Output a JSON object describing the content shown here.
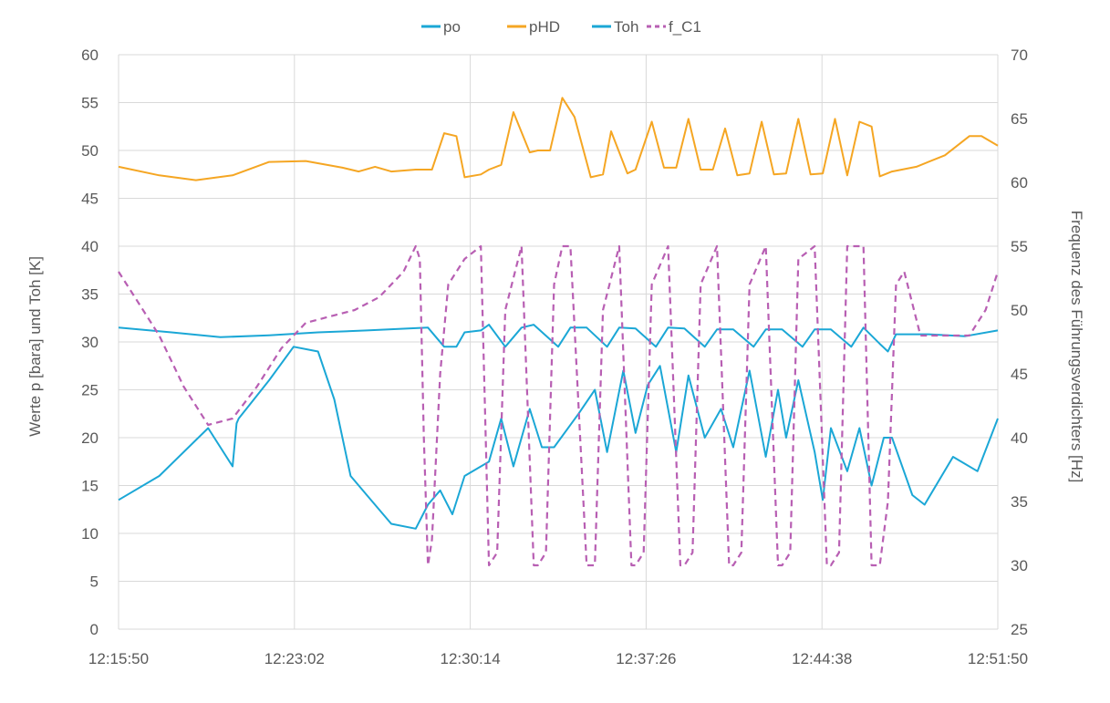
{
  "chart_data": {
    "type": "line",
    "title": "",
    "legend_position": "top",
    "grid": {
      "horizontal": true,
      "vertical": true
    },
    "x_axis": {
      "type": "time",
      "range": [
        "12:15:50",
        "12:51:50"
      ],
      "tick_labels": [
        "12:15:50",
        "12:23:02",
        "12:30:14",
        "12:37:26",
        "12:44:38",
        "12:51:50"
      ]
    },
    "y_axis_left": {
      "label": "Werte p [bara] und Toh [K]",
      "range": [
        0,
        60
      ],
      "tick_labels": [
        "0",
        "5",
        "10",
        "15",
        "20",
        "25",
        "30",
        "35",
        "40",
        "45",
        "50",
        "55",
        "60"
      ]
    },
    "y_axis_right": {
      "label": "Frequenz des Führungsverdichters [Hz]",
      "range": [
        25,
        70
      ],
      "tick_labels": [
        "25",
        "30",
        "35",
        "40",
        "45",
        "50",
        "55",
        "60",
        "65",
        "70"
      ]
    },
    "series": [
      {
        "name": "po",
        "axis": "left",
        "color": "#1ba7d6",
        "dash": "solid",
        "x": [
          "12:15:50",
          "12:18:00",
          "12:20:00",
          "12:22:00",
          "12:24:00",
          "12:26:00",
          "12:28:30",
          "12:29:10",
          "12:29:40",
          "12:30:00",
          "12:30:40",
          "12:31:00",
          "12:31:40",
          "12:32:20",
          "12:32:50",
          "12:33:50",
          "12:34:20",
          "12:35:00",
          "12:35:50",
          "12:36:20",
          "12:37:00",
          "12:37:50",
          "12:38:20",
          "12:39:00",
          "12:39:50",
          "12:40:20",
          "12:41:00",
          "12:41:50",
          "12:42:20",
          "12:43:00",
          "12:43:50",
          "12:44:20",
          "12:45:00",
          "12:45:50",
          "12:46:20",
          "12:47:00",
          "12:47:20",
          "12:47:40",
          "12:49:00",
          "12:50:30",
          "12:51:50"
        ],
        "y": [
          31.5,
          31,
          30.5,
          30.7,
          31,
          31.2,
          31.5,
          29.5,
          29.5,
          31,
          31.2,
          31.8,
          29.5,
          31.5,
          31.8,
          29.5,
          31.5,
          31.5,
          29.5,
          31.5,
          31.4,
          29.5,
          31.5,
          31.4,
          29.5,
          31.3,
          31.3,
          29.5,
          31.3,
          31.3,
          29.5,
          31.3,
          31.3,
          29.5,
          31.5,
          29.8,
          29,
          30.8,
          30.8,
          30.6,
          31.2
        ]
      },
      {
        "name": "pHD",
        "axis": "left",
        "color": "#f5a623",
        "dash": "solid",
        "x": [
          "12:15:50",
          "12:17:30",
          "12:19:00",
          "12:20:30",
          "12:22:00",
          "12:23:30",
          "12:25:00",
          "12:25:40",
          "12:26:20",
          "12:27:00",
          "12:28:00",
          "12:28:40",
          "12:29:10",
          "12:29:40",
          "12:30:00",
          "12:30:40",
          "12:31:00",
          "12:31:30",
          "12:32:00",
          "12:32:40",
          "12:33:00",
          "12:33:30",
          "12:34:00",
          "12:34:30",
          "12:35:10",
          "12:35:40",
          "12:36:00",
          "12:36:40",
          "12:37:00",
          "12:37:40",
          "12:38:10",
          "12:38:40",
          "12:39:10",
          "12:39:40",
          "12:40:10",
          "12:40:40",
          "12:41:10",
          "12:41:40",
          "12:42:10",
          "12:42:40",
          "12:43:10",
          "12:43:40",
          "12:44:10",
          "12:44:40",
          "12:45:10",
          "12:45:40",
          "12:46:10",
          "12:46:40",
          "12:47:00",
          "12:47:30",
          "12:48:30",
          "12:49:40",
          "12:50:40",
          "12:51:10",
          "12:51:50"
        ],
        "y": [
          48.3,
          47.4,
          46.9,
          47.4,
          48.8,
          48.9,
          48.2,
          47.8,
          48.3,
          47.8,
          48,
          48,
          51.8,
          51.5,
          47.2,
          47.5,
          48,
          48.5,
          54,
          49.8,
          50,
          50,
          55.5,
          53.5,
          47.2,
          47.5,
          52,
          47.6,
          48,
          53,
          48.2,
          48.2,
          53.3,
          48,
          48,
          52.3,
          47.4,
          47.6,
          53,
          47.5,
          47.6,
          53.3,
          47.5,
          47.6,
          53.3,
          47.4,
          53,
          52.5,
          47.3,
          47.8,
          48.3,
          49.5,
          51.5,
          51.5,
          50.5
        ]
      },
      {
        "name": "Toh",
        "axis": "left",
        "color": "#1ba7d6",
        "dash": "solid",
        "x": [
          "12:15:50",
          "12:17:30",
          "12:19:30",
          "12:20:30",
          "12:20:40",
          "12:20:45",
          "12:22:00",
          "12:23:00",
          "12:24:00",
          "12:24:40",
          "12:25:20",
          "12:26:00",
          "12:27:00",
          "12:28:00",
          "12:28:30",
          "12:29:00",
          "12:29:30",
          "12:30:00",
          "12:31:00",
          "12:31:30",
          "12:32:00",
          "12:32:40",
          "12:33:10",
          "12:33:40",
          "12:34:40",
          "12:35:20",
          "12:35:50",
          "12:36:30",
          "12:37:00",
          "12:37:30",
          "12:38:00",
          "12:38:40",
          "12:39:10",
          "12:39:50",
          "12:40:30",
          "12:41:00",
          "12:41:40",
          "12:42:20",
          "12:42:50",
          "12:43:10",
          "12:43:40",
          "12:44:20",
          "12:44:40",
          "12:45:00",
          "12:45:40",
          "12:46:10",
          "12:46:40",
          "12:47:10",
          "12:47:30",
          "12:48:20",
          "12:48:50",
          "12:50:00",
          "12:51:00",
          "12:51:50"
        ],
        "y": [
          13.5,
          16,
          21,
          17,
          21.5,
          22,
          26,
          29.5,
          29,
          24,
          16,
          14,
          11,
          10.5,
          13,
          14.5,
          12,
          16,
          17.5,
          22,
          17,
          23,
          19,
          19,
          22.5,
          25,
          18.5,
          27,
          20.5,
          25.5,
          27.5,
          18.5,
          26.5,
          20,
          23,
          19,
          27,
          18,
          25,
          20,
          26,
          18.5,
          13.5,
          21,
          16.5,
          21,
          15,
          20,
          20,
          14,
          13,
          18,
          16.5,
          22
        ]
      },
      {
        "name": "f_C1",
        "axis": "right",
        "color": "#b85fb3",
        "dash": "dashed",
        "x": [
          "12:15:50",
          "12:16:30",
          "12:17:30",
          "12:18:30",
          "12:19:30",
          "12:20:30",
          "12:21:30",
          "12:22:30",
          "12:23:30",
          "12:24:30",
          "12:25:30",
          "12:26:30",
          "12:27:30",
          "12:28:00",
          "12:28:10",
          "12:28:20",
          "12:28:30",
          "12:28:40",
          "12:29:00",
          "12:29:20",
          "12:29:40",
          "12:30:00",
          "12:30:40",
          "12:31:00",
          "12:31:20",
          "12:31:40",
          "12:32:20",
          "12:32:50",
          "12:33:00",
          "12:33:20",
          "12:33:40",
          "12:34:00",
          "12:34:20",
          "12:35:00",
          "12:35:20",
          "12:35:40",
          "12:36:20",
          "12:36:50",
          "12:37:00",
          "12:37:20",
          "12:37:40",
          "12:38:20",
          "12:38:50",
          "12:39:00",
          "12:39:20",
          "12:39:40",
          "12:40:20",
          "12:40:50",
          "12:41:00",
          "12:41:20",
          "12:41:40",
          "12:42:20",
          "12:42:50",
          "12:43:00",
          "12:43:20",
          "12:43:40",
          "12:44:20",
          "12:44:50",
          "12:45:00",
          "12:45:20",
          "12:45:40",
          "12:46:20",
          "12:46:40",
          "12:47:00",
          "12:47:20",
          "12:47:40",
          "12:48:00",
          "12:48:40",
          "12:49:00",
          "12:49:40",
          "12:50:40",
          "12:51:20",
          "12:51:50"
        ],
        "y": [
          53,
          51,
          48,
          44,
          41,
          41.5,
          44,
          47,
          49,
          49.5,
          50,
          51,
          53,
          55,
          54,
          40,
          30,
          32,
          45,
          52,
          53,
          54,
          55,
          30,
          31,
          50,
          55,
          30,
          30,
          31,
          52,
          55,
          55,
          30,
          30,
          50,
          55,
          30,
          30,
          31,
          52,
          55,
          30,
          30,
          31,
          52,
          55,
          30,
          30,
          31,
          52,
          55,
          30,
          30,
          31,
          54,
          55,
          30,
          30,
          31,
          55,
          55,
          30,
          30,
          35,
          52,
          53,
          48,
          48,
          48,
          48,
          50,
          53
        ]
      }
    ]
  }
}
